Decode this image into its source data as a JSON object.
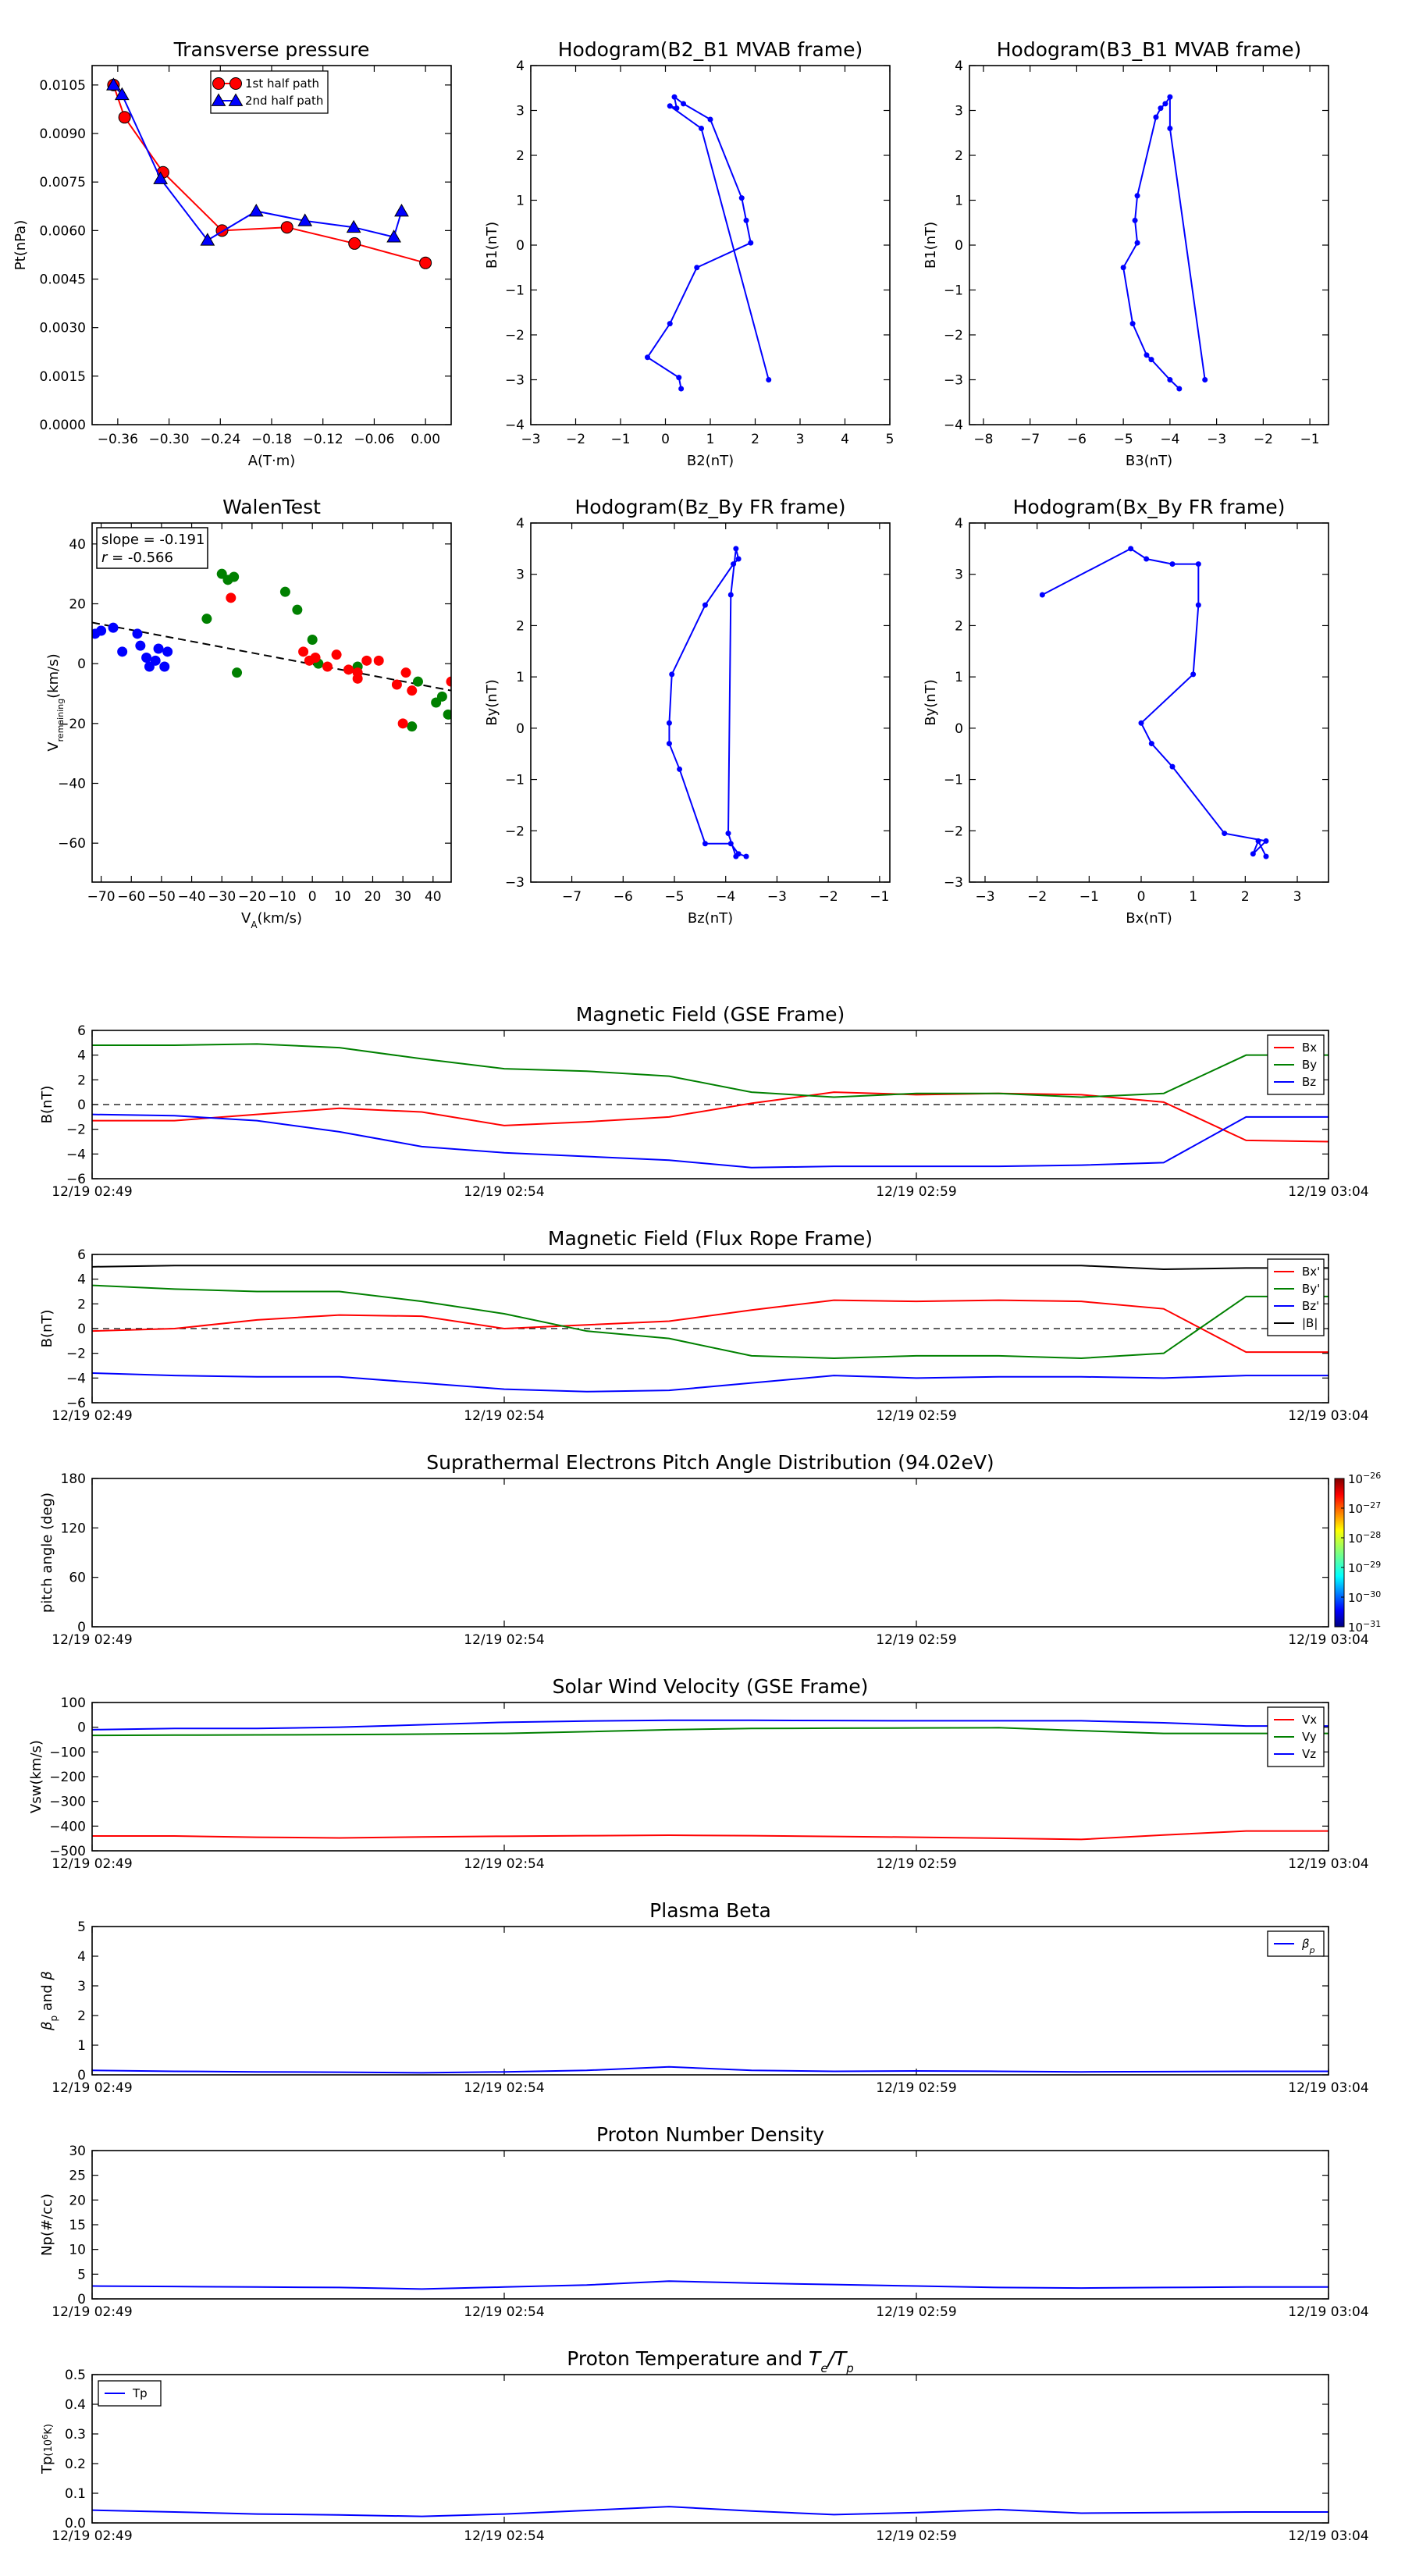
{
  "colors": {
    "red": "#ff0000",
    "green": "#008000",
    "blue": "#0000ff",
    "black": "#000000"
  },
  "time_ticks": [
    "12/19 02:49",
    "12/19 02:54",
    "12/19 02:59",
    "12/19 03:04"
  ],
  "chart_data": [
    {
      "id": "tp",
      "type": "line",
      "title": "Transverse pressure",
      "xlabel": "A(T·m)",
      "ylabel": "Pt(nPa)",
      "xlim": [
        -0.39,
        0.03
      ],
      "ylim": [
        0,
        0.0111
      ],
      "xticks": [
        -0.36,
        -0.3,
        -0.24,
        -0.18,
        -0.12,
        -0.06,
        0.0
      ],
      "xticklabels": [
        "−0.36",
        "−0.30",
        "−0.24",
        "−0.18",
        "−0.12",
        "−0.06",
        "0.00"
      ],
      "yticks": [
        0,
        0.0015,
        0.003,
        0.0045,
        0.006,
        0.0075,
        0.009,
        0.0105
      ],
      "yticklabels": [
        "0.0000",
        "0.0015",
        "0.0030",
        "0.0045",
        "0.0060",
        "0.0075",
        "0.0090",
        "0.0105"
      ],
      "legend_loc": "top-center",
      "series": [
        {
          "name": "1st half path",
          "color": "red",
          "marker": "circle",
          "x": [
            -0.365,
            -0.352,
            -0.307,
            -0.238,
            -0.162,
            -0.083,
            0.0
          ],
          "y": [
            0.0105,
            0.0095,
            0.0078,
            0.006,
            0.0061,
            0.0056,
            0.005
          ]
        },
        {
          "name": "2nd half path",
          "color": "blue",
          "marker": "triangle",
          "x": [
            -0.365,
            -0.355,
            -0.31,
            -0.255,
            -0.198,
            -0.141,
            -0.084,
            -0.037,
            -0.028
          ],
          "y": [
            0.0105,
            0.0102,
            0.0076,
            0.0057,
            0.0066,
            0.0063,
            0.0061,
            0.0058,
            0.0066
          ]
        }
      ]
    },
    {
      "id": "h1",
      "type": "line",
      "title": "Hodogram(B2_B1 MVAB frame)",
      "xlabel": "B2(nT)",
      "ylabel": "B1(nT)",
      "xlim": [
        -3,
        5
      ],
      "ylim": [
        -4,
        4
      ],
      "xticks": [
        -3,
        -2,
        -1,
        0,
        1,
        2,
        3,
        4,
        5
      ],
      "yticks": [
        -4,
        -3,
        -2,
        -1,
        0,
        1,
        2,
        3,
        4
      ],
      "series": [
        {
          "name": "",
          "color": "blue",
          "marker": "dot",
          "x": [
            0.35,
            0.3,
            -0.4,
            0.1,
            0.7,
            1.9,
            1.8,
            1.7,
            1.0,
            0.4,
            0.2,
            0.25,
            0.1,
            0.8,
            2.3
          ],
          "y": [
            -3.2,
            -2.95,
            -2.5,
            -1.75,
            -0.5,
            0.05,
            0.55,
            1.05,
            2.8,
            3.15,
            3.3,
            3.05,
            3.1,
            2.6,
            -3.0
          ]
        }
      ]
    },
    {
      "id": "h2",
      "type": "line",
      "title": "Hodogram(B3_B1 MVAB frame)",
      "xlabel": "B3(nT)",
      "ylabel": "B1(nT)",
      "xlim": [
        -8.3,
        -0.6
      ],
      "ylim": [
        -4,
        4
      ],
      "xticks": [
        -8,
        -7,
        -6,
        -5,
        -4,
        -3,
        -2,
        -1
      ],
      "yticks": [
        -4,
        -3,
        -2,
        -1,
        0,
        1,
        2,
        3,
        4
      ],
      "series": [
        {
          "name": "",
          "color": "blue",
          "marker": "dot",
          "x": [
            -3.8,
            -4.0,
            -4.4,
            -4.5,
            -4.8,
            -5.0,
            -4.7,
            -4.75,
            -4.7,
            -4.3,
            -4.2,
            -4.1,
            -4.0,
            -4.0,
            -3.25
          ],
          "y": [
            -3.2,
            -3.0,
            -2.55,
            -2.45,
            -1.75,
            -0.5,
            0.05,
            0.55,
            1.1,
            2.85,
            3.05,
            3.15,
            3.3,
            2.6,
            -3.0
          ]
        }
      ]
    },
    {
      "id": "walen",
      "type": "scatter",
      "title": "WalenTest",
      "xlabel": "V_A(km/s)",
      "ylabel": "V_remaining(km/s)",
      "xlim": [
        -73,
        46
      ],
      "ylim": [
        -73,
        47
      ],
      "xticks": [
        -70,
        -60,
        -50,
        -40,
        -30,
        -20,
        -10,
        0,
        10,
        20,
        30,
        40
      ],
      "yticks": [
        -60,
        -40,
        -20,
        0,
        20,
        40
      ],
      "annotation": [
        "slope = -0.191",
        "r = -0.566"
      ],
      "fit": {
        "slope": -0.191,
        "intercept": -0.2
      },
      "series": [
        {
          "name": "",
          "color": "blue",
          "x": [
            -72,
            -70,
            -66,
            -63,
            -58,
            -57,
            -55,
            -54,
            -52,
            -51,
            -49,
            -48
          ],
          "y": [
            10,
            11,
            12,
            4,
            10,
            6,
            2,
            -1,
            1,
            5,
            -1,
            4
          ]
        },
        {
          "name": "",
          "color": "green",
          "x": [
            -35,
            -30,
            -28,
            -26,
            -25,
            -9,
            -5,
            0,
            2,
            15,
            33,
            35,
            41,
            43,
            45
          ],
          "y": [
            15,
            30,
            28,
            29,
            -3,
            24,
            18,
            8,
            0,
            -1,
            -21,
            -6,
            -13,
            -11,
            -17
          ]
        },
        {
          "name": "",
          "color": "red",
          "x": [
            -27,
            -3,
            -1,
            1,
            5,
            8,
            12,
            15,
            15,
            18,
            22,
            28,
            30,
            31,
            33,
            46
          ],
          "y": [
            22,
            4,
            1,
            2,
            -1,
            3,
            -2,
            -3,
            -5,
            1,
            1,
            -7,
            -20,
            -3,
            -9,
            -6
          ]
        }
      ]
    },
    {
      "id": "h3",
      "type": "line",
      "title": "Hodogram(Bz_By FR frame)",
      "xlabel": "Bz(nT)",
      "ylabel": "By(nT)",
      "xlim": [
        -7.8,
        -0.8
      ],
      "ylim": [
        -3,
        4
      ],
      "xticks": [
        -7,
        -6,
        -5,
        -4,
        -3,
        -2,
        -1
      ],
      "yticks": [
        -3,
        -2,
        -1,
        0,
        1,
        2,
        3,
        4
      ],
      "series": [
        {
          "name": "",
          "color": "blue",
          "marker": "dot",
          "x": [
            -3.6,
            -3.75,
            -3.9,
            -4.4,
            -4.9,
            -5.1,
            -5.1,
            -5.05,
            -4.4,
            -3.85,
            -3.75,
            -3.8,
            -3.9,
            -3.95,
            -3.8
          ],
          "y": [
            -2.5,
            -2.45,
            -2.25,
            -2.25,
            -0.8,
            -0.3,
            0.1,
            1.05,
            2.4,
            3.2,
            3.3,
            3.5,
            2.6,
            -2.05,
            -2.5
          ]
        }
      ]
    },
    {
      "id": "h4",
      "type": "line",
      "title": "Hodogram(Bx_By FR frame)",
      "xlabel": "Bx(nT)",
      "ylabel": "By(nT)",
      "xlim": [
        -3.3,
        3.6
      ],
      "ylim": [
        -3,
        4
      ],
      "xticks": [
        -3,
        -2,
        -1,
        0,
        1,
        2,
        3
      ],
      "yticks": [
        -3,
        -2,
        -1,
        0,
        1,
        2,
        3,
        4
      ],
      "series": [
        {
          "name": "",
          "color": "blue",
          "marker": "dot",
          "x": [
            2.4,
            2.25,
            2.15,
            2.4,
            1.6,
            0.6,
            0.2,
            0.0,
            1.0,
            1.1,
            1.1,
            0.6,
            0.1,
            -0.2,
            -1.9
          ],
          "y": [
            -2.5,
            -2.2,
            -2.45,
            -2.2,
            -2.05,
            -0.75,
            -0.3,
            0.1,
            1.05,
            2.4,
            3.2,
            3.2,
            3.3,
            3.5,
            2.6
          ]
        }
      ]
    },
    {
      "id": "bgse",
      "type": "line",
      "title": "Magnetic Field (GSE Frame)",
      "ylabel": "B(nT)",
      "ylim": [
        -6,
        6
      ],
      "yticks": [
        -6,
        -4,
        -2,
        0,
        2,
        4,
        6
      ],
      "zero_line": true,
      "legend_loc": "top-right",
      "x": [
        0,
        1,
        2,
        3,
        4,
        5,
        6,
        7,
        8,
        9,
        10,
        11,
        12,
        13,
        14,
        15
      ],
      "series": [
        {
          "name": "Bx",
          "color": "red",
          "values": [
            -1.3,
            -1.3,
            -0.8,
            -0.3,
            -0.6,
            -1.7,
            -1.4,
            -1.0,
            0.1,
            1.0,
            0.8,
            0.9,
            0.8,
            0.2,
            -2.9,
            -3.0
          ]
        },
        {
          "name": "By",
          "color": "green",
          "values": [
            4.8,
            4.8,
            4.9,
            4.6,
            3.7,
            2.9,
            2.7,
            2.3,
            1.0,
            0.6,
            0.9,
            0.9,
            0.6,
            0.9,
            4.0,
            4.0
          ]
        },
        {
          "name": "Bz",
          "color": "blue",
          "values": [
            -0.8,
            -0.9,
            -1.3,
            -2.2,
            -3.4,
            -3.9,
            -4.2,
            -4.5,
            -5.1,
            -5.0,
            -5.0,
            -5.0,
            -4.9,
            -4.7,
            -1.0,
            -1.0
          ]
        }
      ]
    },
    {
      "id": "bfr",
      "type": "line",
      "title": "Magnetic Field (Flux Rope Frame)",
      "ylabel": "B(nT)",
      "ylim": [
        -6,
        6
      ],
      "yticks": [
        -6,
        -4,
        -2,
        0,
        2,
        4,
        6
      ],
      "zero_line": true,
      "legend_loc": "top-right",
      "x": [
        0,
        1,
        2,
        3,
        4,
        5,
        6,
        7,
        8,
        9,
        10,
        11,
        12,
        13,
        14,
        15
      ],
      "series": [
        {
          "name": "Bx'",
          "color": "red",
          "values": [
            -0.2,
            0.0,
            0.7,
            1.1,
            1.0,
            0.0,
            0.3,
            0.6,
            1.5,
            2.3,
            2.2,
            2.3,
            2.2,
            1.6,
            -1.9,
            -1.9
          ]
        },
        {
          "name": "By'",
          "color": "green",
          "values": [
            3.5,
            3.2,
            3.0,
            3.0,
            2.2,
            1.2,
            -0.2,
            -0.8,
            -2.2,
            -2.4,
            -2.2,
            -2.2,
            -2.4,
            -2.0,
            2.6,
            2.6
          ]
        },
        {
          "name": "Bz'",
          "color": "blue",
          "values": [
            -3.6,
            -3.8,
            -3.9,
            -3.9,
            -4.4,
            -4.9,
            -5.1,
            -5.0,
            -4.4,
            -3.8,
            -4.0,
            -3.9,
            -3.9,
            -4.0,
            -3.8,
            -3.8
          ]
        },
        {
          "name": "|B|",
          "color": "black",
          "values": [
            5.0,
            5.1,
            5.1,
            5.1,
            5.1,
            5.1,
            5.1,
            5.1,
            5.1,
            5.1,
            5.1,
            5.1,
            5.1,
            4.8,
            4.9,
            4.9
          ]
        }
      ]
    },
    {
      "id": "pad",
      "type": "heatmap",
      "title": "Suprathermal Electrons Pitch Angle Distribution (94.02eV)",
      "ylabel": "pitch angle (deg)",
      "ylim": [
        0,
        180
      ],
      "yticks": [
        0,
        60,
        120,
        180
      ],
      "colorbar_ticks": [
        "-26",
        "-27",
        "-28",
        "-29",
        "-30",
        "-31"
      ],
      "colorbar_base": "10"
    },
    {
      "id": "vsw",
      "type": "line",
      "title": "Solar Wind Velocity (GSE Frame)",
      "ylabel": "Vsw(km/s)",
      "ylim": [
        -500,
        100
      ],
      "yticks": [
        -500,
        -400,
        -300,
        -200,
        -100,
        0,
        100
      ],
      "legend_loc": "top-right",
      "x": [
        0,
        1,
        2,
        3,
        4,
        5,
        6,
        7,
        8,
        9,
        10,
        11,
        12,
        13,
        14,
        15
      ],
      "series": [
        {
          "name": "Vx",
          "color": "red",
          "values": [
            -440,
            -440,
            -445,
            -448,
            -444,
            -441,
            -439,
            -437,
            -439,
            -442,
            -445,
            -449,
            -454,
            -436,
            -420,
            -420
          ]
        },
        {
          "name": "Vy",
          "color": "green",
          "values": [
            -33,
            -32,
            -31,
            -30,
            -28,
            -25,
            -18,
            -10,
            -5,
            -4,
            -3,
            -2,
            -14,
            -25,
            -25,
            -25
          ]
        },
        {
          "name": "Vz",
          "color": "blue",
          "values": [
            -10,
            -5,
            -5,
            0,
            10,
            20,
            25,
            28,
            28,
            27,
            26,
            26,
            26,
            18,
            5,
            5
          ]
        }
      ]
    },
    {
      "id": "beta",
      "type": "line",
      "title": "Plasma Beta",
      "ylabel": "βp and β",
      "ylim": [
        0,
        5
      ],
      "yticks": [
        0,
        1,
        2,
        3,
        4,
        5
      ],
      "legend_loc": "top-right",
      "x": [
        0,
        1,
        2,
        3,
        4,
        5,
        6,
        7,
        8,
        9,
        10,
        11,
        12,
        13,
        14,
        15
      ],
      "series": [
        {
          "name": "βp",
          "color": "blue",
          "values": [
            0.15,
            0.12,
            0.1,
            0.09,
            0.07,
            0.1,
            0.15,
            0.27,
            0.15,
            0.12,
            0.13,
            0.12,
            0.1,
            0.11,
            0.12,
            0.12
          ]
        }
      ]
    },
    {
      "id": "np",
      "type": "line",
      "title": "Proton Number Density",
      "ylabel": "Np(#/cc)",
      "ylim": [
        0,
        30
      ],
      "yticks": [
        0,
        5,
        10,
        15,
        20,
        25,
        30
      ],
      "x": [
        0,
        1,
        2,
        3,
        4,
        5,
        6,
        7,
        8,
        9,
        10,
        11,
        12,
        13,
        14,
        15
      ],
      "series": [
        {
          "name": "",
          "color": "blue",
          "values": [
            2.6,
            2.5,
            2.4,
            2.3,
            2.0,
            2.4,
            2.8,
            3.6,
            3.2,
            2.9,
            2.6,
            2.3,
            2.2,
            2.3,
            2.4,
            2.4
          ]
        }
      ]
    },
    {
      "id": "tp2",
      "type": "line",
      "title": "Proton Temperature and Te/Tp",
      "ylabel": "Tp(10^6K)",
      "ylim": [
        0,
        0.5
      ],
      "yticks": [
        0,
        0.1,
        0.2,
        0.3,
        0.4,
        0.5
      ],
      "yticklabels": [
        "0.0",
        "0.1",
        "0.2",
        "0.3",
        "0.4",
        "0.5"
      ],
      "legend_loc": "top-left",
      "x": [
        0,
        1,
        2,
        3,
        4,
        5,
        6,
        7,
        8,
        9,
        10,
        11,
        12,
        13,
        14,
        15
      ],
      "series": [
        {
          "name": "Tp",
          "color": "blue",
          "values": [
            0.043,
            0.037,
            0.03,
            0.027,
            0.022,
            0.03,
            0.042,
            0.055,
            0.04,
            0.028,
            0.035,
            0.045,
            0.033,
            0.035,
            0.037,
            0.037
          ]
        }
      ]
    }
  ]
}
